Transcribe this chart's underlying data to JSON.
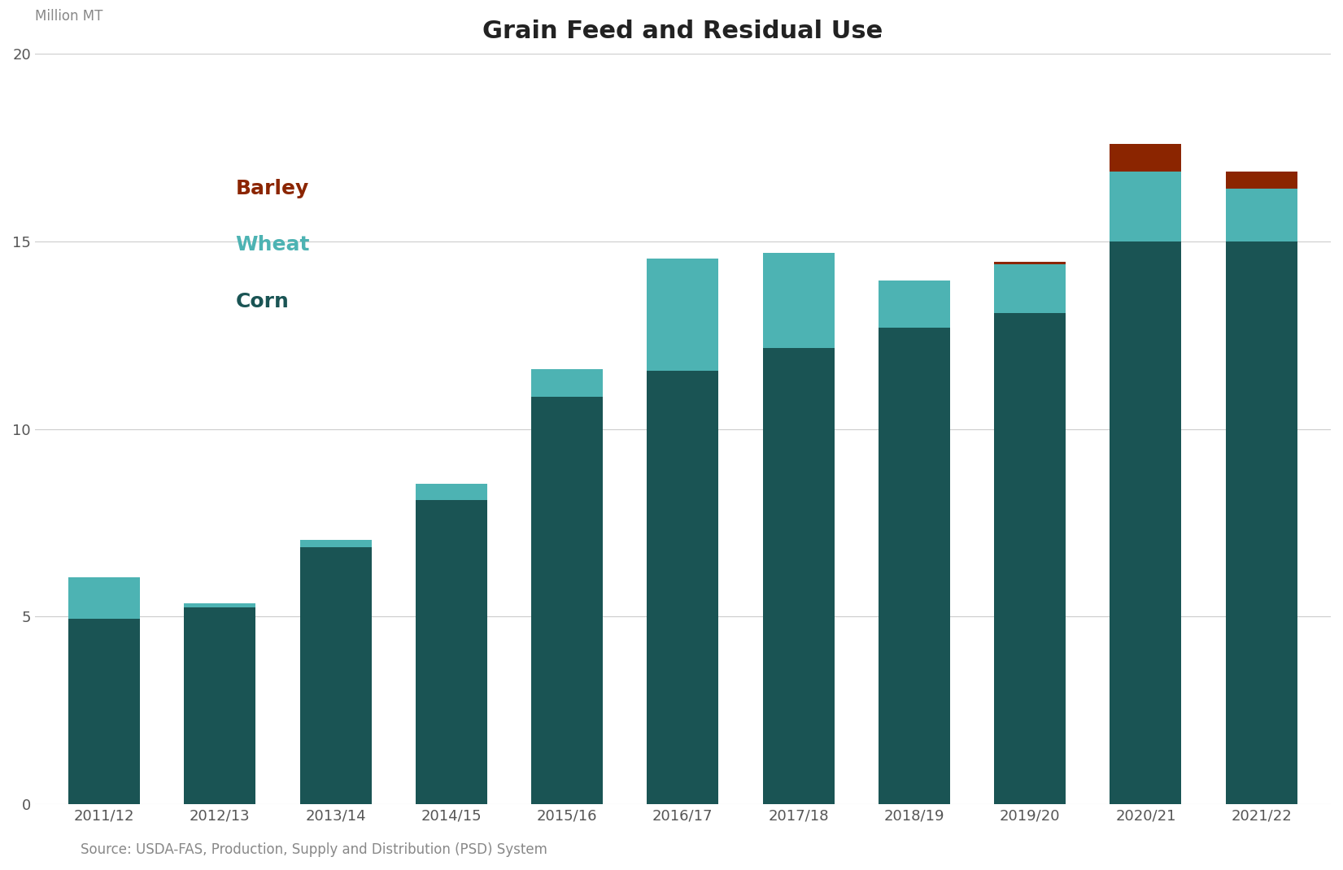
{
  "title": "Grain Feed and Residual Use",
  "ylabel": "Million MT",
  "source": "Source: USDA-FAS, Production, Supply and Distribution (PSD) System",
  "categories": [
    "2011/12",
    "2012/13",
    "2013/14",
    "2014/15",
    "2015/16",
    "2016/17",
    "2017/18",
    "2018/19",
    "2019/20",
    "2020/21",
    "2021/22"
  ],
  "corn": [
    4.95,
    5.25,
    6.85,
    8.1,
    10.85,
    11.55,
    12.15,
    12.7,
    13.1,
    15.0,
    15.0
  ],
  "wheat": [
    1.1,
    0.1,
    0.2,
    0.45,
    0.75,
    3.0,
    2.55,
    1.25,
    1.3,
    1.85,
    1.4
  ],
  "barley": [
    0.0,
    0.0,
    0.0,
    0.0,
    0.0,
    0.0,
    0.0,
    0.0,
    0.05,
    0.75,
    0.45
  ],
  "corn_color": "#1a5454",
  "wheat_color": "#4db3b3",
  "barley_color": "#8b2500",
  "background_color": "#ffffff",
  "grid_color": "#cccccc",
  "ylim": [
    0,
    20
  ],
  "yticks": [
    0,
    5,
    10,
    15,
    20
  ],
  "title_fontsize": 22,
  "label_fontsize": 12,
  "tick_fontsize": 13,
  "legend_fontsize": 18,
  "source_fontsize": 12,
  "bar_width": 0.62
}
